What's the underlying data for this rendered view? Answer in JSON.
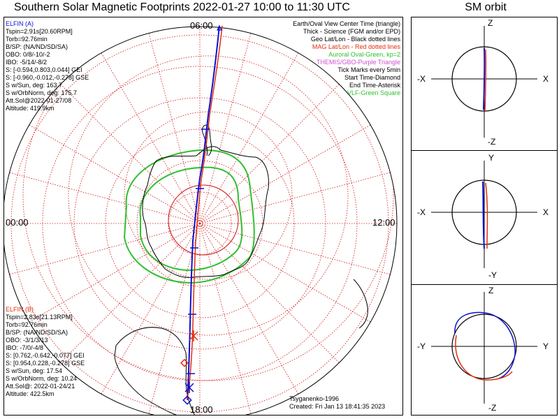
{
  "title": "Southern Solar Magnetic Footprints 2022-01-27 10:00 to 11:30 UTC",
  "orbit_title": "SM orbit",
  "mlt_labels": {
    "top": "06:00",
    "left": "00:00",
    "right": "12:00",
    "bottom": "18:00"
  },
  "elfin_a": {
    "name": "ELFIN (A)",
    "lines": [
      "Tspin=2.91s[20.60RPM]",
      "Torb=92.76min",
      "B/SP: (NA/ND/SD/SA)",
      "OBO: 0/8/-10/-2",
      "IBO: -5/14/-8/2",
      "S: [-0.594,0.803,0.044] GEI",
      "S: [-0.960,-0.012,-0.278] GSE",
      "S w/Sun, deg: 163.7",
      "S w/OrbNorm, deg: 175.7",
      "Att.Sol@2022-01-27/08",
      "Altitude: 419.9km"
    ]
  },
  "elfin_b": {
    "name": "ELFIN (B)",
    "lines": [
      "Tspin=2.83s[21.13RPM]",
      "Torb=92.76min",
      "B/SP: (NA/ND/SD/SA)",
      "OBO: -3/1/3/13",
      "IBO: -7/0/-4/8",
      "S: [0.762,-0.642,-0.077] GEI",
      "S: [0.954,0.228,-0.278] GSE",
      "S w/Sun, deg: 17.54",
      "S w/OrbNorm, deg: 10.24",
      "Att.Sol@: 2022-01-24/21",
      "Altitude: 422.5km"
    ]
  },
  "legend": {
    "line1": "Earth/Oval View Center Time (triangle)",
    "line2": "Thick - Science (FGM and/or EPD)",
    "line3": "Geo Lat/Lon - Black dotted lines",
    "line4": "MAG Lat/Lon - Red dotted lines",
    "line5": "Auroral Oval-Green, kp=2",
    "line6": "THEMIS/GBO-Purple Triangle",
    "line7": "Tick Marks every 5min",
    "line8": "Start Time-Diamond",
    "line9": "End Time-Asterisk",
    "line10": "VLF-Green Square"
  },
  "credit": {
    "author": "Tsyganenko-1996",
    "created": "Created: Fri Jan 13 18:41:35 2023"
  },
  "orbit_panels": [
    {
      "top": "Z",
      "bottom": "-Z",
      "left": "-X",
      "right": "X"
    },
    {
      "top": "Y",
      "bottom": "-Y",
      "left": "-X",
      "right": "X"
    },
    {
      "top": "Z",
      "bottom": "-Z",
      "left": "-Y",
      "right": "Y"
    }
  ],
  "colors": {
    "elfin_a": "#1010d0",
    "elfin_b": "#e03010",
    "geo_grid": "#d01010",
    "mag_grid": "#d01010",
    "oval": "#30c030",
    "coast": "#000000"
  }
}
